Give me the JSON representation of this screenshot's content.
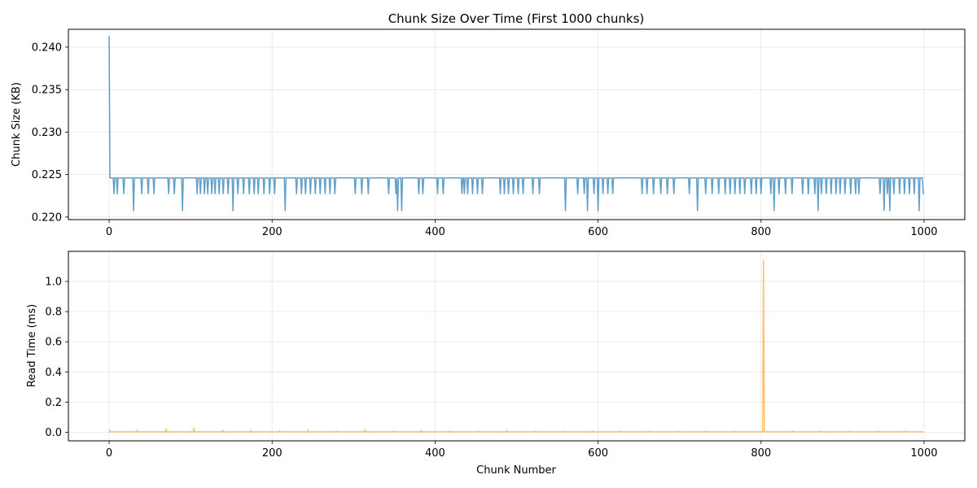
{
  "chart_data": [
    {
      "type": "line",
      "title": "Chunk Size Over Time (First 1000 chunks)",
      "xlabel": "",
      "ylabel": "Chunk Size (KB)",
      "xlim": [
        -50,
        1050
      ],
      "ylim": [
        0.2197,
        0.2421
      ],
      "xticks": [
        "0",
        "200",
        "400",
        "600",
        "800",
        "1000"
      ],
      "yticks": [
        "0.220",
        "0.225",
        "0.230",
        "0.235",
        "0.240"
      ],
      "grid": true,
      "color": "#1f77b4",
      "series": [
        {
          "base": 0.2246,
          "spikes": [
            [
              0,
              0.2413
            ]
          ],
          "dips": [
            [
              6,
              0.2227
            ],
            [
              10,
              0.2227
            ],
            [
              18,
              0.2227
            ],
            [
              30,
              0.2207
            ],
            [
              40,
              0.2227
            ],
            [
              48,
              0.2227
            ],
            [
              55,
              0.2227
            ],
            [
              73,
              0.2227
            ],
            [
              80,
              0.2227
            ],
            [
              90,
              0.2207
            ],
            [
              108,
              0.2227
            ],
            [
              112,
              0.2227
            ],
            [
              117,
              0.2227
            ],
            [
              121,
              0.2227
            ],
            [
              126,
              0.2227
            ],
            [
              130,
              0.2227
            ],
            [
              135,
              0.2227
            ],
            [
              140,
              0.2227
            ],
            [
              146,
              0.2227
            ],
            [
              152,
              0.2207
            ],
            [
              158,
              0.2227
            ],
            [
              165,
              0.2227
            ],
            [
              172,
              0.2227
            ],
            [
              178,
              0.2227
            ],
            [
              183,
              0.2227
            ],
            [
              190,
              0.2227
            ],
            [
              197,
              0.2227
            ],
            [
              203,
              0.2227
            ],
            [
              216,
              0.2207
            ],
            [
              230,
              0.2227
            ],
            [
              236,
              0.2227
            ],
            [
              241,
              0.2227
            ],
            [
              247,
              0.2227
            ],
            [
              253,
              0.2227
            ],
            [
              259,
              0.2227
            ],
            [
              265,
              0.2227
            ],
            [
              271,
              0.2227
            ],
            [
              277,
              0.2227
            ],
            [
              302,
              0.2227
            ],
            [
              310,
              0.2227
            ],
            [
              318,
              0.2227
            ],
            [
              343,
              0.2227
            ],
            [
              352,
              0.2227
            ],
            [
              354,
              0.2207
            ],
            [
              359,
              0.2207
            ],
            [
              380,
              0.2227
            ],
            [
              385,
              0.2227
            ],
            [
              403,
              0.2227
            ],
            [
              410,
              0.2227
            ],
            [
              433,
              0.2227
            ],
            [
              436,
              0.2227
            ],
            [
              440,
              0.2227
            ],
            [
              446,
              0.2227
            ],
            [
              452,
              0.2227
            ],
            [
              458,
              0.2227
            ],
            [
              480,
              0.2227
            ],
            [
              485,
              0.2227
            ],
            [
              490,
              0.2227
            ],
            [
              496,
              0.2227
            ],
            [
              502,
              0.2227
            ],
            [
              508,
              0.2227
            ],
            [
              520,
              0.2227
            ],
            [
              528,
              0.2227
            ],
            [
              560,
              0.2207
            ],
            [
              575,
              0.2227
            ],
            [
              583,
              0.2227
            ],
            [
              587,
              0.2207
            ],
            [
              595,
              0.2227
            ],
            [
              600,
              0.2207
            ],
            [
              606,
              0.2227
            ],
            [
              612,
              0.2227
            ],
            [
              618,
              0.2227
            ],
            [
              654,
              0.2227
            ],
            [
              660,
              0.2227
            ],
            [
              668,
              0.2227
            ],
            [
              677,
              0.2227
            ],
            [
              685,
              0.2227
            ],
            [
              693,
              0.2227
            ],
            [
              712,
              0.2227
            ],
            [
              722,
              0.2207
            ],
            [
              732,
              0.2227
            ],
            [
              740,
              0.2227
            ],
            [
              748,
              0.2227
            ],
            [
              756,
              0.2227
            ],
            [
              762,
              0.2227
            ],
            [
              768,
              0.2227
            ],
            [
              774,
              0.2227
            ],
            [
              780,
              0.2227
            ],
            [
              788,
              0.2227
            ],
            [
              794,
              0.2227
            ],
            [
              800,
              0.2227
            ],
            [
              812,
              0.2227
            ],
            [
              816,
              0.2207
            ],
            [
              822,
              0.2227
            ],
            [
              830,
              0.2227
            ],
            [
              838,
              0.2227
            ],
            [
              851,
              0.2227
            ],
            [
              858,
              0.2227
            ],
            [
              866,
              0.2227
            ],
            [
              870,
              0.2207
            ],
            [
              874,
              0.2227
            ],
            [
              880,
              0.2227
            ],
            [
              886,
              0.2227
            ],
            [
              892,
              0.2227
            ],
            [
              897,
              0.2227
            ],
            [
              903,
              0.2227
            ],
            [
              910,
              0.2227
            ],
            [
              916,
              0.2227
            ],
            [
              920,
              0.2227
            ],
            [
              946,
              0.2227
            ],
            [
              951,
              0.2207
            ],
            [
              955,
              0.2227
            ],
            [
              958,
              0.2207
            ],
            [
              963,
              0.2227
            ],
            [
              970,
              0.2227
            ],
            [
              976,
              0.2227
            ],
            [
              982,
              0.2227
            ],
            [
              988,
              0.2227
            ],
            [
              994,
              0.2207
            ],
            [
              999,
              0.2227
            ]
          ]
        }
      ]
    },
    {
      "type": "line",
      "title": "",
      "xlabel": "Chunk Number",
      "ylabel": "Read Time (ms)",
      "xlim": [
        -50,
        1050
      ],
      "ylim": [
        -0.057,
        1.2
      ],
      "xticks": [
        "0",
        "200",
        "400",
        "600",
        "800",
        "1000"
      ],
      "yticks": [
        "0.0",
        "0.2",
        "0.4",
        "0.6",
        "0.8",
        "1.0"
      ],
      "grid": true,
      "color": "#ffa726",
      "series": [
        {
          "base": 0.003,
          "spikes": [
            [
              0,
              0.018
            ],
            [
              34,
              0.012
            ],
            [
              70,
              0.02
            ],
            [
              104,
              0.022
            ],
            [
              139,
              0.012
            ],
            [
              174,
              0.01
            ],
            [
              209,
              0.01
            ],
            [
              244,
              0.014
            ],
            [
              279,
              0.008
            ],
            [
              314,
              0.016
            ],
            [
              349,
              0.008
            ],
            [
              383,
              0.012
            ],
            [
              418,
              0.008
            ],
            [
              453,
              0.008
            ],
            [
              488,
              0.01
            ],
            [
              523,
              0.008
            ],
            [
              558,
              0.007
            ],
            [
              593,
              0.008
            ],
            [
              628,
              0.008
            ],
            [
              663,
              0.008
            ],
            [
              698,
              0.007
            ],
            [
              733,
              0.008
            ],
            [
              768,
              0.007
            ],
            [
              803,
              1.145
            ],
            [
              839,
              0.008
            ],
            [
              873,
              0.008
            ],
            [
              908,
              0.008
            ],
            [
              943,
              0.008
            ],
            [
              978,
              0.008
            ]
          ],
          "dips": []
        }
      ]
    }
  ]
}
